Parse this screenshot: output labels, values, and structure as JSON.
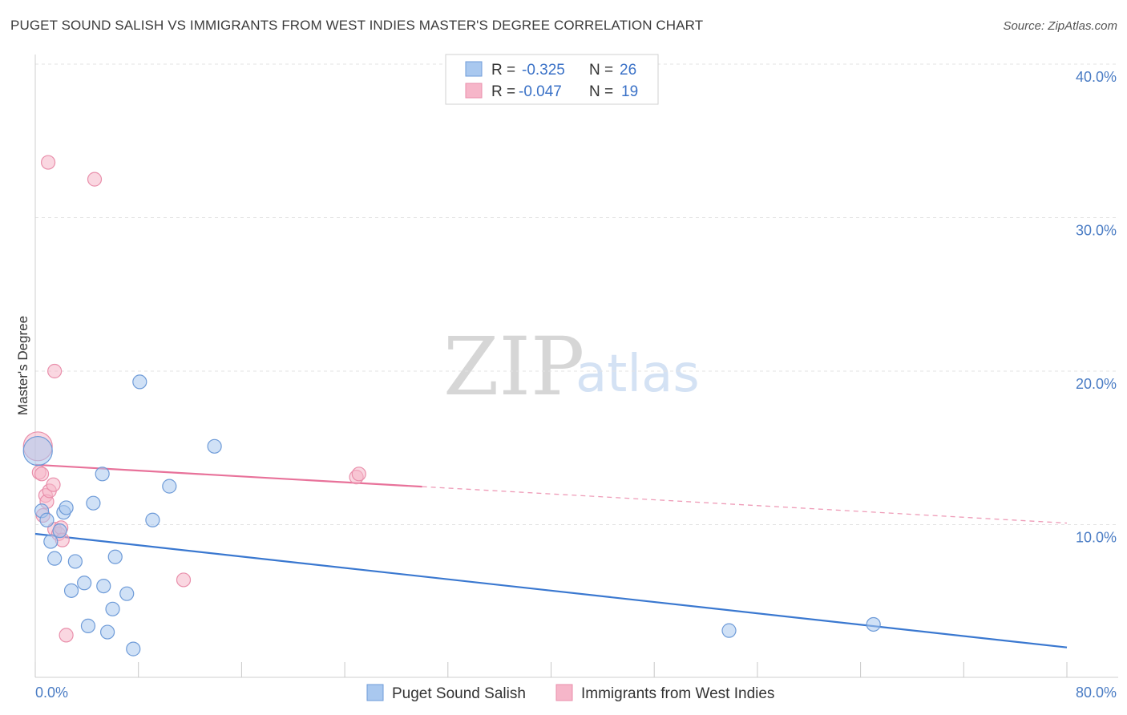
{
  "title": "PUGET SOUND SALISH VS IMMIGRANTS FROM WEST INDIES MASTER'S DEGREE CORRELATION CHART",
  "source": "Source: ZipAtlas.com",
  "watermark": {
    "zip": "ZIP",
    "atlas": "atlas"
  },
  "colors": {
    "blue_fill": "#a9c8ef",
    "blue_stroke": "#6e9bd8",
    "blue_line": "#3a78d0",
    "pink_fill": "#f6b6c9",
    "pink_stroke": "#e98fab",
    "pink_line": "#e8729a",
    "tick": "#4a7cc4"
  },
  "legend": {
    "row1": {
      "r_label": "R =",
      "r_value": "-0.325",
      "n_label": "N =",
      "n_value": "26"
    },
    "row2": {
      "r_label": "R =",
      "r_value": "-0.047",
      "n_label": "N =",
      "n_value": "19"
    }
  },
  "chart_data": {
    "type": "scatter",
    "title": "PUGET SOUND SALISH VS IMMIGRANTS FROM WEST INDIES MASTER'S DEGREE CORRELATION CHART",
    "xlabel": "",
    "ylabel": "Master's Degree",
    "xlim": [
      0,
      80
    ],
    "ylim": [
      0,
      40
    ],
    "x_tick_labels": {
      "min": "0.0%",
      "max": "80.0%"
    },
    "y_ticks": [
      10,
      20,
      30,
      40
    ],
    "y_tick_labels": [
      "10.0%",
      "20.0%",
      "30.0%",
      "40.0%"
    ],
    "grid": true,
    "series": [
      {
        "name": "Puget Sound Salish",
        "color": "blue",
        "R": -0.325,
        "N": 26,
        "points": [
          {
            "x": 0.2,
            "y": 14.8,
            "big": true
          },
          {
            "x": 0.5,
            "y": 10.9
          },
          {
            "x": 0.9,
            "y": 10.3
          },
          {
            "x": 1.2,
            "y": 8.9
          },
          {
            "x": 1.5,
            "y": 7.8
          },
          {
            "x": 1.9,
            "y": 9.6
          },
          {
            "x": 2.2,
            "y": 10.8
          },
          {
            "x": 2.4,
            "y": 11.1
          },
          {
            "x": 2.8,
            "y": 5.7
          },
          {
            "x": 3.1,
            "y": 7.6
          },
          {
            "x": 3.8,
            "y": 6.2
          },
          {
            "x": 4.1,
            "y": 3.4
          },
          {
            "x": 4.5,
            "y": 11.4
          },
          {
            "x": 5.2,
            "y": 13.3
          },
          {
            "x": 5.3,
            "y": 6.0
          },
          {
            "x": 5.6,
            "y": 3.0
          },
          {
            "x": 6.0,
            "y": 4.5
          },
          {
            "x": 6.2,
            "y": 7.9
          },
          {
            "x": 7.1,
            "y": 5.5
          },
          {
            "x": 7.6,
            "y": 1.9
          },
          {
            "x": 8.1,
            "y": 19.3
          },
          {
            "x": 9.1,
            "y": 10.3
          },
          {
            "x": 10.4,
            "y": 12.5
          },
          {
            "x": 13.9,
            "y": 15.1
          },
          {
            "x": 53.8,
            "y": 3.1
          },
          {
            "x": 65.0,
            "y": 3.5
          }
        ],
        "trend": {
          "x0": 0,
          "y0": 9.4,
          "x1": 80,
          "y1": 2.0,
          "dashed_from": null
        }
      },
      {
        "name": "Immigrants from West Indies",
        "color": "pink",
        "R": -0.047,
        "N": 19,
        "points": [
          {
            "x": 0.2,
            "y": 15.1,
            "big": true
          },
          {
            "x": 0.3,
            "y": 13.4
          },
          {
            "x": 0.5,
            "y": 13.3
          },
          {
            "x": 0.6,
            "y": 10.6
          },
          {
            "x": 0.8,
            "y": 11.9
          },
          {
            "x": 0.9,
            "y": 11.5
          },
          {
            "x": 1.1,
            "y": 12.2
          },
          {
            "x": 1.4,
            "y": 12.6
          },
          {
            "x": 1.5,
            "y": 9.7
          },
          {
            "x": 1.8,
            "y": 9.4
          },
          {
            "x": 2.0,
            "y": 9.8
          },
          {
            "x": 2.1,
            "y": 9.0
          },
          {
            "x": 2.4,
            "y": 2.8
          },
          {
            "x": 1.0,
            "y": 33.6
          },
          {
            "x": 4.6,
            "y": 32.5
          },
          {
            "x": 1.5,
            "y": 20.0
          },
          {
            "x": 11.5,
            "y": 6.4
          },
          {
            "x": 24.9,
            "y": 13.1
          },
          {
            "x": 25.1,
            "y": 13.3
          }
        ],
        "trend": {
          "x0": 0,
          "y0": 13.9,
          "x1": 80,
          "y1": 10.1,
          "dashed_from": 30
        }
      }
    ]
  }
}
